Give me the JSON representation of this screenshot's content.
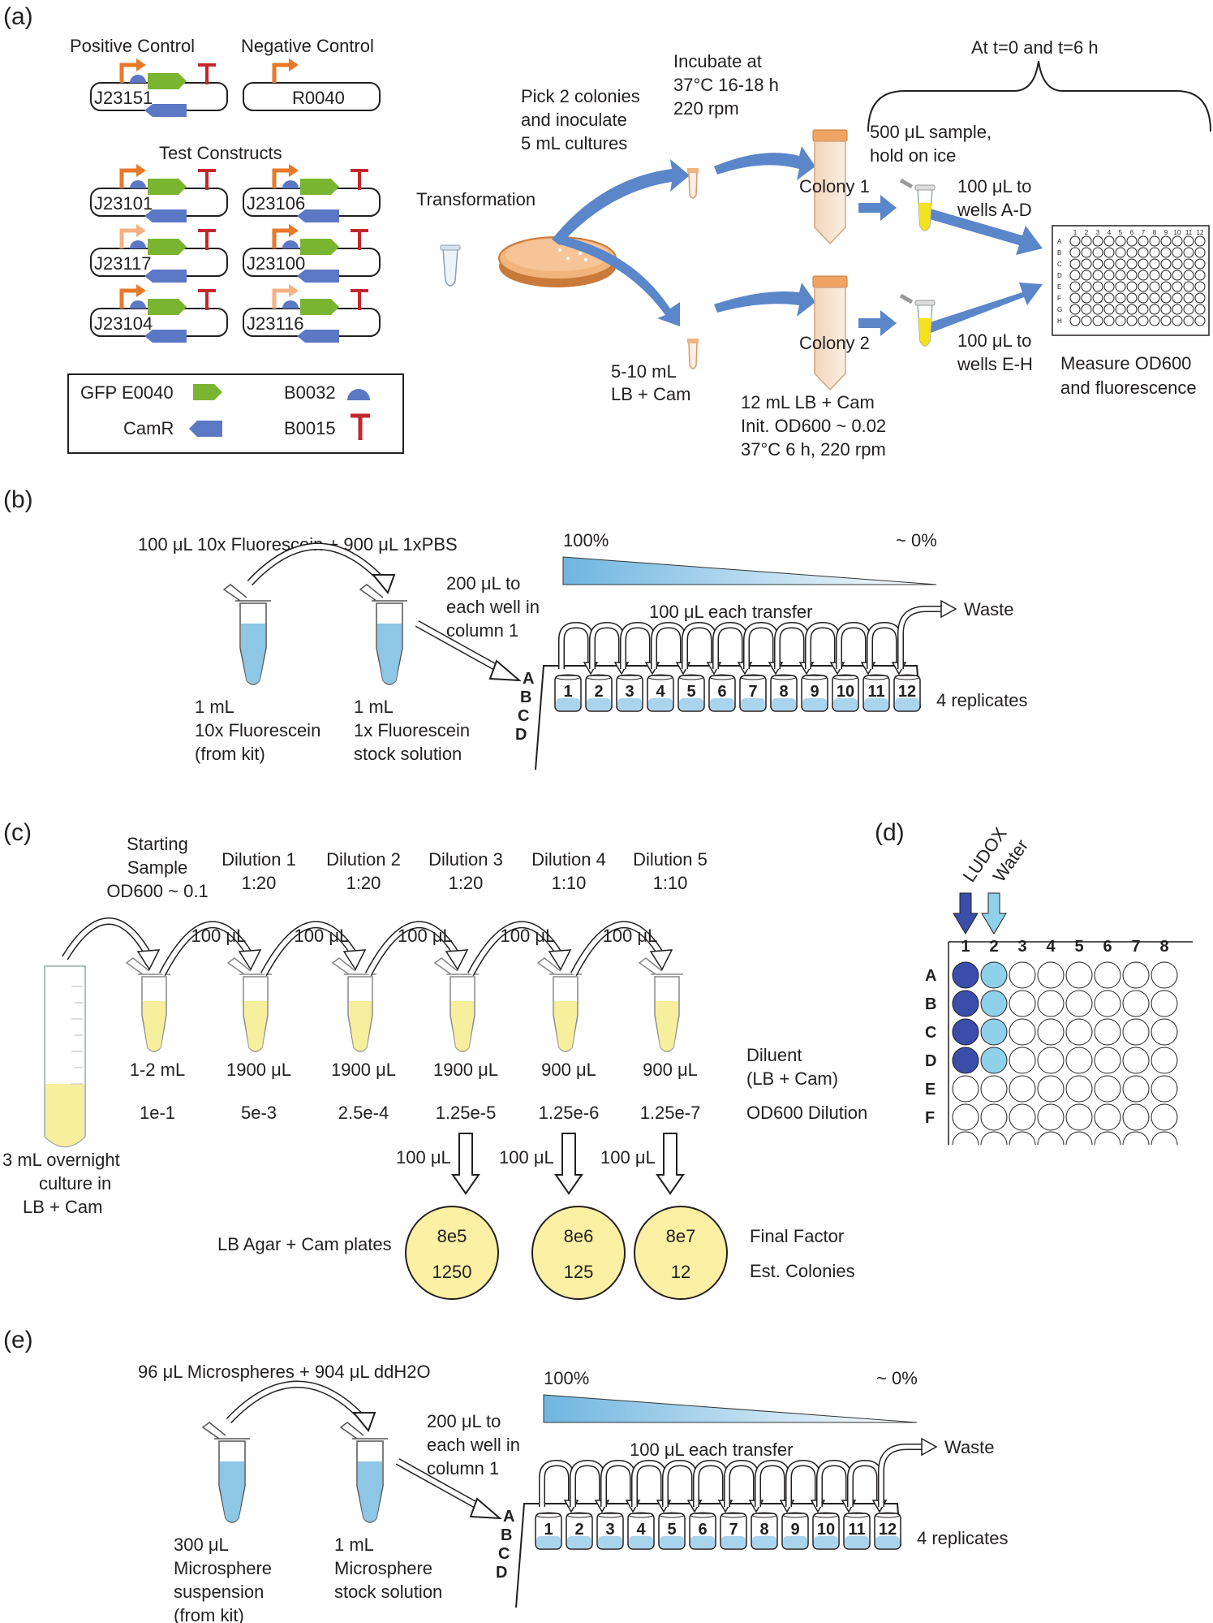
{
  "colors": {
    "gfp": "#7ab532",
    "camr": "#5b78c4",
    "rbs": "#5b78c4",
    "terminator": "#c4262e",
    "promoter_strong": "#e8782a",
    "promoter_weak": "#f4b183",
    "arrow_blue": "#3d6db5",
    "ludox": "#3a4da8",
    "water": "#8fd0ea",
    "yellow_liquid": "#f6ef9e",
    "plate_yellow": "#fbf0a4",
    "fluor_blue": "#8ec6e6"
  },
  "panel_a": {
    "label": "(a)",
    "positive_control_title": "Positive Control",
    "negative_control_title": "Negative Control",
    "positive_plasmid": "J23151",
    "negative_plasmid": "R0040",
    "test_constructs_title": "Test Constructs",
    "constructs": [
      "J23101",
      "J23106",
      "J23117",
      "J23100",
      "J23104",
      "J23116"
    ],
    "legend": {
      "gfp": "GFP E0040",
      "rbs": "B0032",
      "camr": "CamR",
      "terminator": "B0015"
    },
    "transformation": "Transformation",
    "pick_colonies": [
      "Pick 2 colonies",
      "and inoculate",
      "5 mL cultures"
    ],
    "incubate": [
      "Incubate at",
      "37°C 16-18 h",
      "220 rpm"
    ],
    "at_times": "At t=0 and t=6 h",
    "sample_hold": [
      "500 μL sample,",
      "hold on ice"
    ],
    "colony1": "Colony 1",
    "colony2": "Colony 2",
    "wells_ad": [
      "100 μL to",
      "wells A-D"
    ],
    "wells_eh": [
      "100 μL to",
      "wells E-H"
    ],
    "lb_cam_small": [
      "5-10 mL",
      "LB + Cam"
    ],
    "culture_conditions": [
      "12 mL LB + Cam",
      "Init. OD600 ~ 0.02",
      "37°C 6 h, 220 rpm"
    ],
    "measure": [
      "Measure OD600",
      "and fluorescence"
    ],
    "plate_cols": [
      "1",
      "2",
      "3",
      "4",
      "5",
      "6",
      "7",
      "8",
      "9",
      "10",
      "11",
      "12"
    ],
    "plate_rows": [
      "A",
      "B",
      "C",
      "D",
      "E",
      "F",
      "G",
      "H"
    ]
  },
  "panel_b": {
    "label": "(b)",
    "mix": "100 μL 10x Fluorescein + 900 μL 1xPBS",
    "tube1": [
      "1 mL",
      "10x Fluorescein",
      "(from kit)"
    ],
    "tube2": [
      "1 mL",
      "1x Fluorescein",
      "stock solution"
    ],
    "transfer_col1": [
      "200 μL to",
      "each well in",
      "column 1"
    ],
    "pct_high": "100%",
    "pct_low": "~ 0%",
    "each_transfer": "100 μL each transfer",
    "waste": "Waste",
    "replicates": "4 replicates",
    "rows": [
      "A",
      "B",
      "C",
      "D"
    ],
    "wells": [
      "1",
      "2",
      "3",
      "4",
      "5",
      "6",
      "7",
      "8",
      "9",
      "10",
      "11",
      "12"
    ]
  },
  "panel_c": {
    "label": "(c)",
    "steps": [
      {
        "title": [
          "Starting",
          "Sample",
          "OD600 ~ 0.1"
        ],
        "volume": "1-2 mL",
        "dilution": "1e-1"
      },
      {
        "title": [
          "Dilution 1",
          "1:20"
        ],
        "volume": "1900 μL",
        "dilution": "5e-3"
      },
      {
        "title": [
          "Dilution 2",
          "1:20"
        ],
        "volume": "1900 μL",
        "dilution": "2.5e-4"
      },
      {
        "title": [
          "Dilution 3",
          "1:20"
        ],
        "volume": "1900 μL",
        "dilution": "1.25e-5"
      },
      {
        "title": [
          "Dilution 4",
          "1:10"
        ],
        "volume": "900 μL",
        "dilution": "1.25e-6"
      },
      {
        "title": [
          "Dilution 5",
          "1:10"
        ],
        "volume": "900 μL",
        "dilution": "1.25e-7"
      }
    ],
    "transfer": "100 μL",
    "diluent": [
      "Diluent",
      "(LB + Cam)"
    ],
    "od_dilution": "OD600 Dilution",
    "overnight": [
      "3 mL overnight",
      "culture in",
      "LB + Cam"
    ],
    "plates_label": "LB Agar + Cam plates",
    "plates": [
      {
        "factor": "8e5",
        "colonies": "1250"
      },
      {
        "factor": "8e6",
        "colonies": "125"
      },
      {
        "factor": "8e7",
        "colonies": "12"
      }
    ],
    "final_factor": "Final Factor",
    "est_colonies": "Est. Colonies"
  },
  "panel_d": {
    "label": "(d)",
    "ludox": "LUDOX",
    "water": "Water",
    "cols": [
      "1",
      "2",
      "3",
      "4",
      "5",
      "6",
      "7",
      "8"
    ],
    "rows": [
      "A",
      "B",
      "C",
      "D",
      "E",
      "F"
    ]
  },
  "panel_e": {
    "label": "(e)",
    "mix": "96 μL Microspheres + 904 μL ddH2O",
    "tube1": [
      "300 μL",
      "Microsphere",
      "suspension",
      "(from kit)"
    ],
    "tube2": [
      "1 mL",
      "Microsphere",
      "stock solution"
    ],
    "transfer_col1": [
      "200 μL to",
      "each well in",
      "column 1"
    ],
    "pct_high": "100%",
    "pct_low": "~ 0%",
    "each_transfer": "100 μL each transfer",
    "waste": "Waste",
    "replicates": "4 replicates",
    "rows": [
      "A",
      "B",
      "C",
      "D"
    ],
    "wells": [
      "1",
      "2",
      "3",
      "4",
      "5",
      "6",
      "7",
      "8",
      "9",
      "10",
      "11",
      "12"
    ]
  }
}
